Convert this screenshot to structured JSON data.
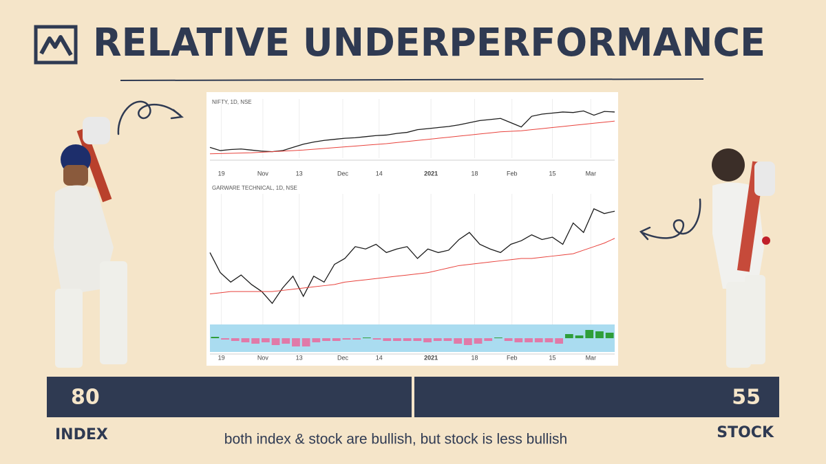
{
  "header": {
    "title": "RELATIVE UNDERPERFORMANCE"
  },
  "chart_data": [
    {
      "type": "line",
      "title": "NIFTY, 1D, NSE",
      "xlim": [
        0,
        39
      ],
      "ylim": [
        0,
        100
      ],
      "grid": true,
      "xticks": [
        {
          "value": 1.1,
          "label": "19"
        },
        {
          "value": 5.1,
          "label": "Nov"
        },
        {
          "value": 8.6,
          "label": "13"
        },
        {
          "value": 12.8,
          "label": "Dec"
        },
        {
          "value": 16.3,
          "label": "14"
        },
        {
          "value": 21.3,
          "label": "2021"
        },
        {
          "value": 25.5,
          "label": "18"
        },
        {
          "value": 29.1,
          "label": "Feb"
        },
        {
          "value": 33,
          "label": "15"
        },
        {
          "value": 36.7,
          "label": "Mar"
        }
      ],
      "series": [
        {
          "color": "#1a1a1a",
          "values": [
            20,
            14,
            16,
            17,
            15,
            13,
            12,
            14,
            20,
            26,
            30,
            33,
            35,
            37,
            38,
            40,
            42,
            43,
            46,
            48,
            53,
            55,
            57,
            59,
            62,
            66,
            70,
            72,
            74,
            66,
            58,
            78,
            82,
            84,
            86,
            85,
            88,
            80,
            87,
            86
          ]
        },
        {
          "color": "#e8403a",
          "values": [
            8,
            8.5,
            9,
            9.5,
            10,
            11,
            12,
            13,
            14,
            15,
            16.5,
            18,
            19.5,
            21,
            22.5,
            24,
            25.5,
            27,
            29,
            31,
            33,
            35,
            37,
            39,
            41,
            43,
            45,
            47,
            49,
            50,
            51,
            53,
            55,
            57,
            59,
            61,
            63,
            65,
            67,
            69
          ]
        }
      ]
    },
    {
      "type": "line",
      "title": "GARWARE TECHNICAL, 1D, NSE",
      "xlim": [
        0,
        39
      ],
      "ylim": [
        0,
        100
      ],
      "grid": true,
      "xticks": [
        {
          "value": 1.1,
          "label": "19"
        },
        {
          "value": 5.1,
          "label": "Nov"
        },
        {
          "value": 8.6,
          "label": "13"
        },
        {
          "value": 12.8,
          "label": "Dec"
        },
        {
          "value": 16.3,
          "label": "14"
        },
        {
          "value": 21.3,
          "label": "2021"
        },
        {
          "value": 25.5,
          "label": "18"
        },
        {
          "value": 29.1,
          "label": "Feb"
        },
        {
          "value": 33,
          "label": "15"
        },
        {
          "value": 36.7,
          "label": "Mar"
        }
      ],
      "series": [
        {
          "color": "#1a1a1a",
          "values": [
            55,
            38,
            30,
            36,
            28,
            22,
            12,
            25,
            35,
            18,
            35,
            30,
            45,
            50,
            60,
            58,
            62,
            55,
            58,
            60,
            50,
            58,
            55,
            57,
            66,
            72,
            62,
            58,
            55,
            62,
            65,
            70,
            66,
            68,
            62,
            80,
            72,
            92,
            88,
            90
          ]
        },
        {
          "color": "#e8403a",
          "values": [
            20,
            21,
            22,
            22,
            22,
            22,
            22,
            23,
            24,
            25,
            26,
            27,
            28,
            30,
            31,
            32,
            33,
            34,
            35,
            36,
            37,
            38,
            40,
            42,
            44,
            45,
            46,
            47,
            48,
            49,
            50,
            50,
            51,
            52,
            53,
            54,
            57,
            60,
            63,
            67
          ]
        }
      ],
      "indicator": {
        "type": "bar",
        "ylim": [
          -10,
          10
        ],
        "background": "#aadcf0",
        "positive_color": "#2e9e3a",
        "negative_color": "#e07aa8",
        "values": [
          1,
          -1,
          -2,
          -3,
          -4,
          -3,
          -5,
          -4,
          -6,
          -6,
          -3,
          -2,
          -2,
          -1,
          -1,
          0.5,
          -1,
          -2,
          -2,
          -2,
          -2,
          -3,
          -2,
          -2,
          -4,
          -5,
          -4,
          -2,
          0.5,
          -2,
          -3,
          -3,
          -3,
          -3,
          -4,
          3,
          2,
          6,
          5,
          4
        ]
      }
    }
  ],
  "scores": {
    "index_value": "80",
    "stock_value": "55",
    "index_label": "INDEX",
    "stock_label": "STOCK"
  },
  "caption": "both index & stock are bullish, but stock is less bullish"
}
